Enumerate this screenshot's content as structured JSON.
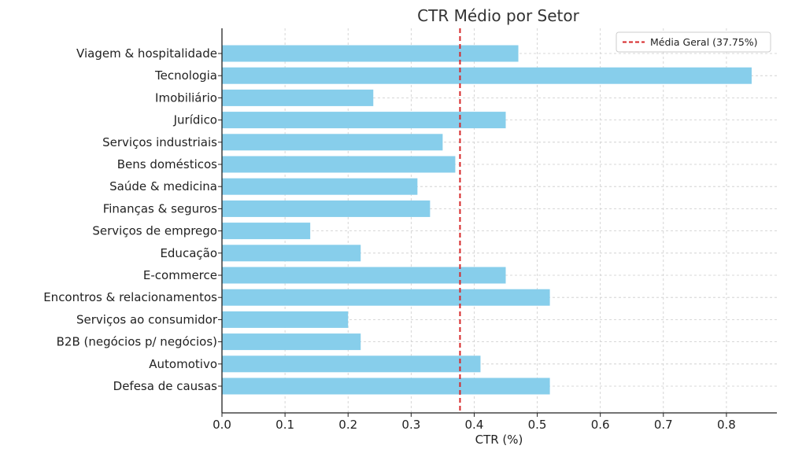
{
  "chart_data": {
    "type": "bar",
    "orientation": "horizontal",
    "title": "CTR Médio por Setor",
    "xlabel": "CTR (%)",
    "ylabel": "",
    "xlim": [
      0,
      0.88
    ],
    "xticks": [
      0.0,
      0.1,
      0.2,
      0.3,
      0.4,
      0.5,
      0.6,
      0.7,
      0.8
    ],
    "xtick_labels": [
      "0.0",
      "0.1",
      "0.2",
      "0.3",
      "0.4",
      "0.5",
      "0.6",
      "0.7",
      "0.8"
    ],
    "grid": true,
    "categories": [
      "Viagem & hospitalidade",
      "Tecnologia",
      "Imobiliário",
      "Jurídico",
      "Serviços industriais",
      "Bens domésticos",
      "Saúde & medicina",
      "Finanças & seguros",
      "Serviços de emprego",
      "Educação",
      "E-commerce",
      "Encontros & relacionamentos",
      "Serviços ao consumidor",
      "B2B (negócios p/ negócios)",
      "Automotivo",
      "Defesa de causas"
    ],
    "values": [
      0.47,
      0.84,
      0.24,
      0.45,
      0.35,
      0.37,
      0.31,
      0.33,
      0.14,
      0.22,
      0.45,
      0.52,
      0.2,
      0.22,
      0.41,
      0.52
    ],
    "bar_color": "#87ceeb",
    "reference_line": {
      "value": 0.3775,
      "label": "Média Geral (37.75%)",
      "color": "#d62728",
      "style": "dashed"
    },
    "legend_position": "top-right"
  }
}
